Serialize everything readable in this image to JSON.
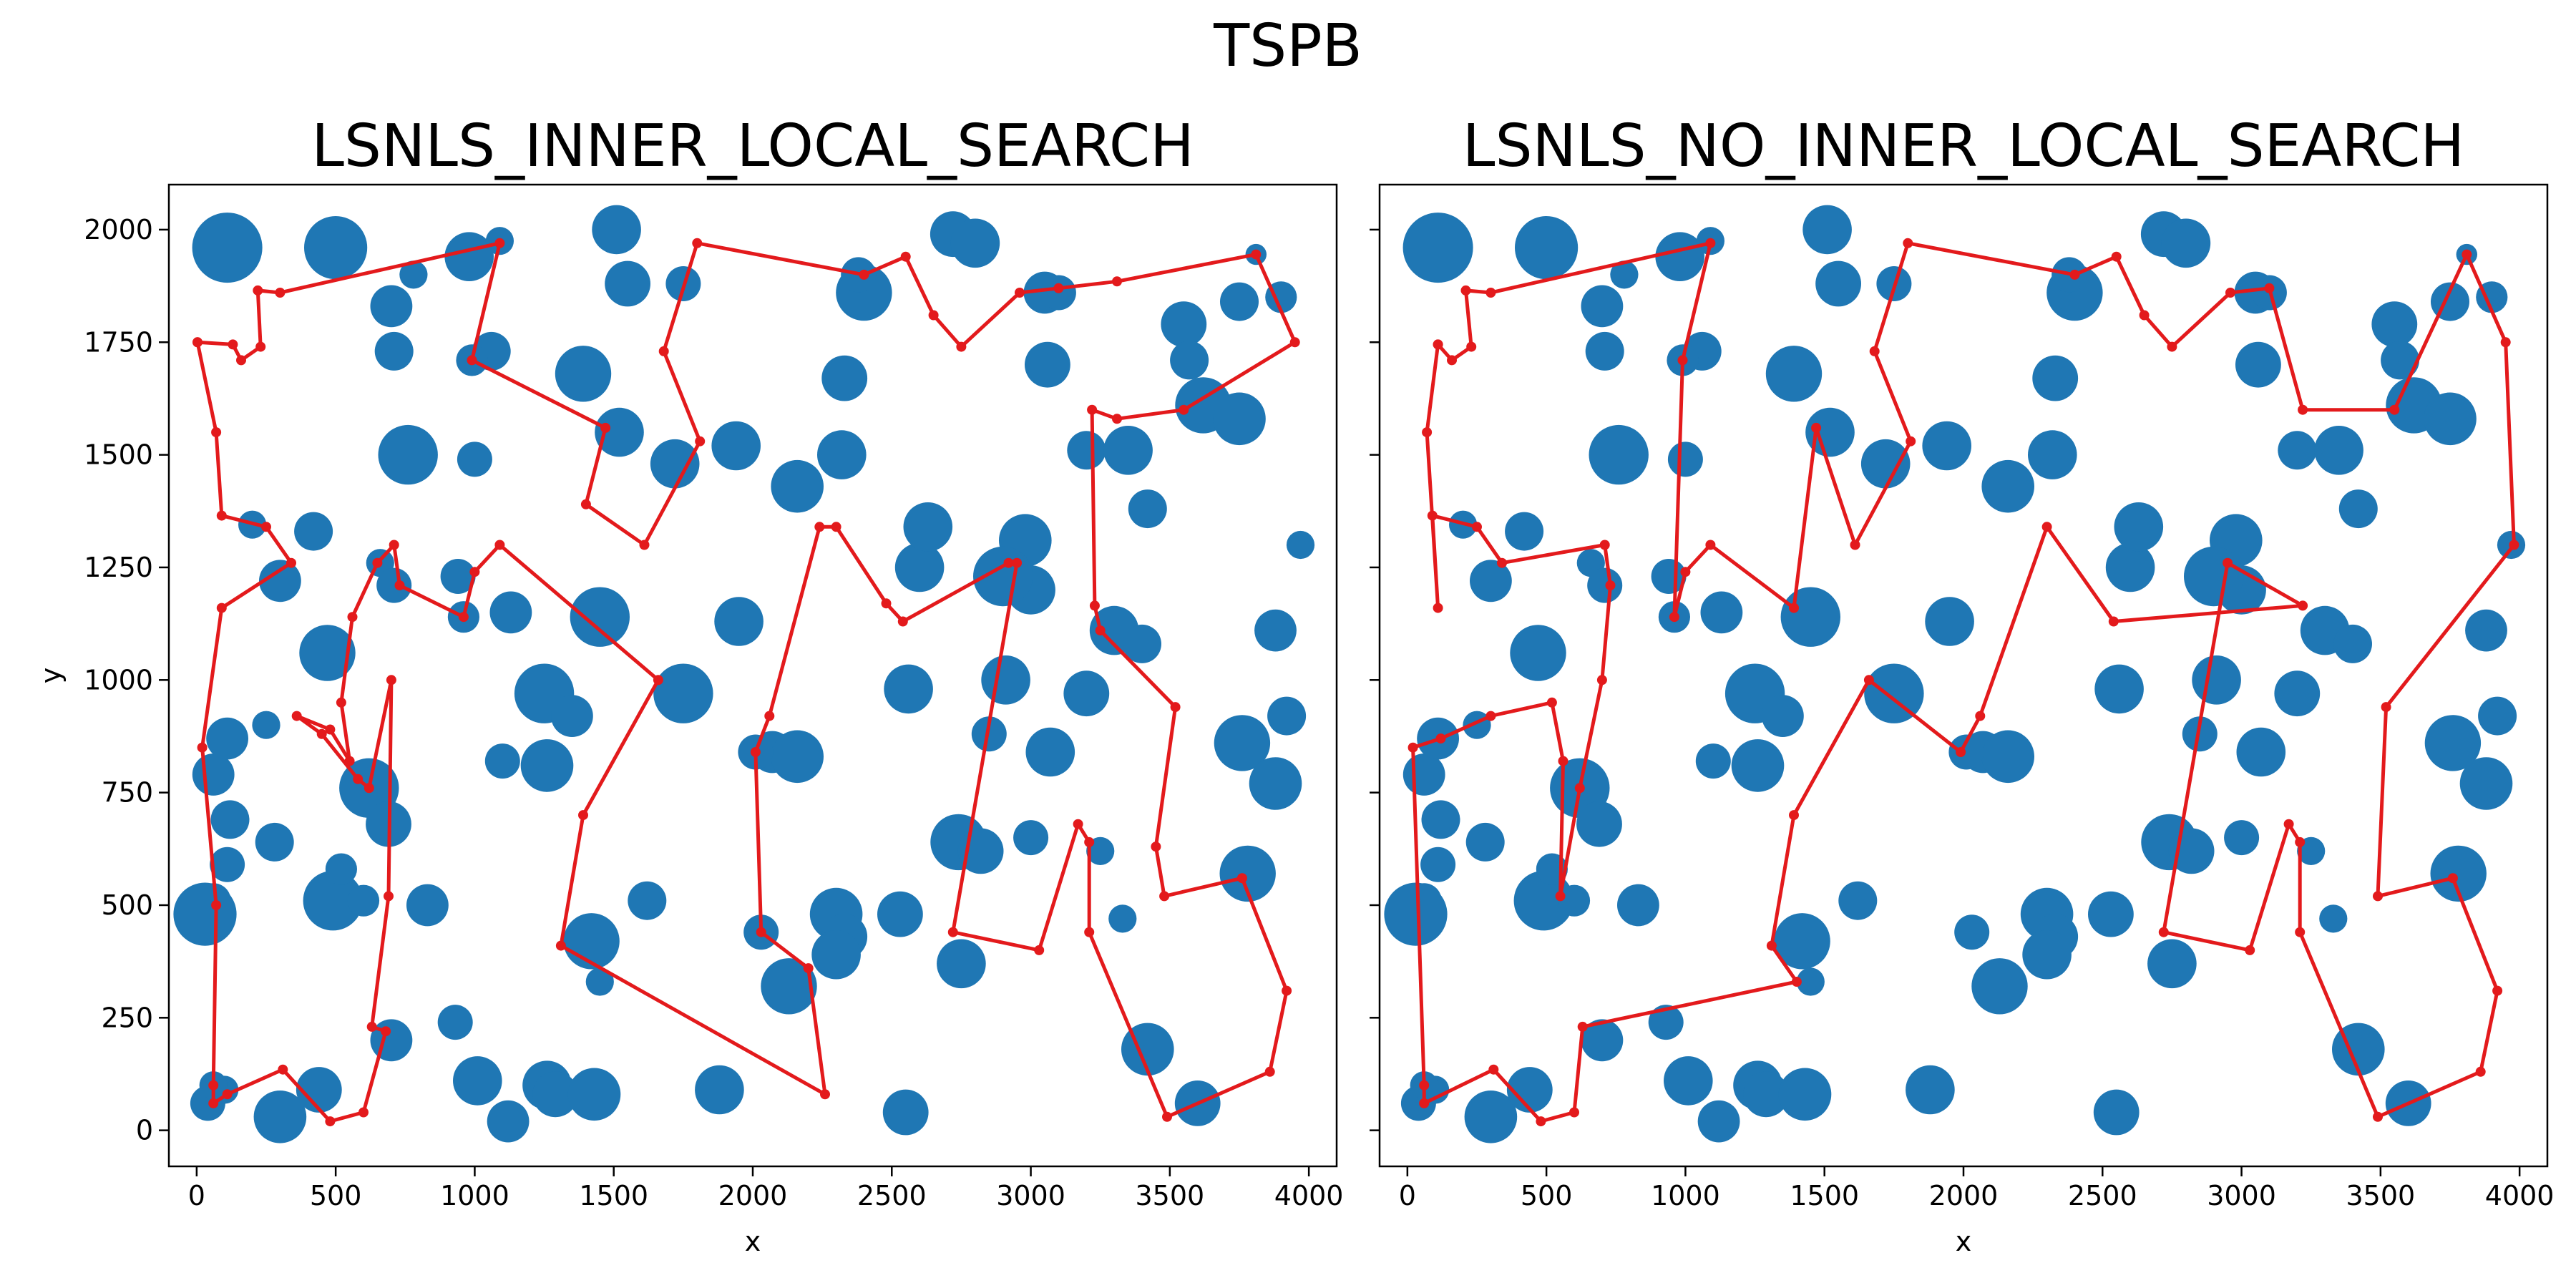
{
  "figure": {
    "title": "TSPB"
  },
  "colors": {
    "node": "#1f77b4",
    "route": "#e31a1c",
    "axis": "#000000"
  },
  "chart_data": [
    {
      "type": "scatter",
      "title": "LSNLS_INNER_LOCAL_SEARCH",
      "xlabel": "x",
      "ylabel": "y",
      "xlim": [
        -100,
        4100
      ],
      "ylim": [
        -80,
        2100
      ],
      "xticks": [
        0,
        500,
        1000,
        1500,
        2000,
        2500,
        3000,
        3500,
        4000
      ],
      "yticks": [
        0,
        250,
        500,
        750,
        1000,
        1250,
        1500,
        1750,
        2000
      ],
      "tick_labels_y_visible": true,
      "grid": false,
      "legend": "none",
      "nodes": "shared",
      "route": [
        [
          3,
          1750
        ],
        [
          130,
          1745
        ],
        [
          160,
          1710
        ],
        [
          230,
          1740
        ],
        [
          220,
          1865
        ],
        [
          300,
          1860
        ],
        [
          1090,
          1970
        ],
        [
          990,
          1710
        ],
        [
          1470,
          1560
        ],
        [
          1400,
          1390
        ],
        [
          1610,
          1300
        ],
        [
          1810,
          1530
        ],
        [
          1680,
          1730
        ],
        [
          1800,
          1970
        ],
        [
          2400,
          1900
        ],
        [
          2550,
          1940
        ],
        [
          2650,
          1810
        ],
        [
          2750,
          1740
        ],
        [
          2960,
          1860
        ],
        [
          3100,
          1870
        ],
        [
          3310,
          1885
        ],
        [
          3810,
          1945
        ],
        [
          3950,
          1750
        ],
        [
          3550,
          1600
        ],
        [
          3310,
          1580
        ],
        [
          3220,
          1600
        ],
        [
          3230,
          1165
        ],
        [
          3250,
          1110
        ],
        [
          3520,
          940
        ],
        [
          3450,
          630
        ],
        [
          3480,
          520
        ],
        [
          3760,
          560
        ],
        [
          3920,
          310
        ],
        [
          3860,
          130
        ],
        [
          3490,
          30
        ],
        [
          3210,
          440
        ],
        [
          3210,
          640
        ],
        [
          3170,
          680
        ],
        [
          3030,
          400
        ],
        [
          2720,
          440
        ],
        [
          2950,
          1260
        ],
        [
          2920,
          1260
        ],
        [
          2540,
          1130
        ],
        [
          2480,
          1170
        ],
        [
          2300,
          1340
        ],
        [
          2240,
          1340
        ],
        [
          2060,
          920
        ],
        [
          2010,
          840
        ],
        [
          2030,
          440
        ],
        [
          2200,
          360
        ],
        [
          2260,
          80
        ],
        [
          1310,
          410
        ],
        [
          1390,
          700
        ],
        [
          1660,
          1000
        ],
        [
          1090,
          1300
        ],
        [
          1000,
          1240
        ],
        [
          960,
          1140
        ],
        [
          730,
          1210
        ],
        [
          710,
          1300
        ],
        [
          650,
          1260
        ],
        [
          560,
          1140
        ],
        [
          520,
          950
        ],
        [
          550,
          820
        ],
        [
          480,
          890
        ],
        [
          360,
          920
        ],
        [
          450,
          880
        ],
        [
          580,
          780
        ],
        [
          620,
          760
        ],
        [
          700,
          1000
        ],
        [
          690,
          520
        ],
        [
          630,
          230
        ],
        [
          680,
          220
        ],
        [
          600,
          40
        ],
        [
          480,
          20
        ],
        [
          310,
          135
        ],
        [
          110,
          80
        ],
        [
          60,
          60
        ],
        [
          60,
          100
        ],
        [
          70,
          500
        ],
        [
          20,
          850
        ],
        [
          90,
          1160
        ],
        [
          340,
          1260
        ],
        [
          250,
          1340
        ],
        [
          90,
          1365
        ],
        [
          70,
          1550
        ],
        [
          3,
          1750
        ]
      ]
    },
    {
      "type": "scatter",
      "title": "LSNLS_NO_INNER_LOCAL_SEARCH",
      "xlabel": "x",
      "ylabel": "",
      "xlim": [
        -100,
        4100
      ],
      "ylim": [
        -80,
        2100
      ],
      "xticks": [
        0,
        500,
        1000,
        1500,
        2000,
        2500,
        3000,
        3500,
        4000
      ],
      "yticks": [
        0,
        250,
        500,
        750,
        1000,
        1250,
        1500,
        1750,
        2000
      ],
      "tick_labels_y_visible": false,
      "grid": false,
      "legend": "none",
      "nodes": "shared",
      "route": [
        [
          110,
          1745
        ],
        [
          160,
          1710
        ],
        [
          230,
          1740
        ],
        [
          210,
          1865
        ],
        [
          300,
          1860
        ],
        [
          1090,
          1970
        ],
        [
          990,
          1710
        ],
        [
          960,
          1140
        ],
        [
          1000,
          1240
        ],
        [
          1090,
          1300
        ],
        [
          1390,
          1160
        ],
        [
          1470,
          1560
        ],
        [
          1610,
          1300
        ],
        [
          1810,
          1530
        ],
        [
          1680,
          1730
        ],
        [
          1800,
          1970
        ],
        [
          2400,
          1900
        ],
        [
          2550,
          1940
        ],
        [
          2650,
          1810
        ],
        [
          2750,
          1740
        ],
        [
          2960,
          1860
        ],
        [
          3100,
          1870
        ],
        [
          3220,
          1600
        ],
        [
          3550,
          1600
        ],
        [
          3810,
          1945
        ],
        [
          3950,
          1750
        ],
        [
          3980,
          1300
        ],
        [
          3520,
          940
        ],
        [
          3490,
          520
        ],
        [
          3760,
          560
        ],
        [
          3920,
          310
        ],
        [
          3860,
          130
        ],
        [
          3490,
          30
        ],
        [
          3210,
          440
        ],
        [
          3210,
          640
        ],
        [
          3170,
          680
        ],
        [
          3030,
          400
        ],
        [
          2720,
          440
        ],
        [
          2950,
          1260
        ],
        [
          3220,
          1165
        ],
        [
          2540,
          1130
        ],
        [
          2300,
          1340
        ],
        [
          2060,
          920
        ],
        [
          1990,
          840
        ],
        [
          1660,
          1000
        ],
        [
          1390,
          700
        ],
        [
          1310,
          410
        ],
        [
          1400,
          330
        ],
        [
          630,
          230
        ],
        [
          600,
          40
        ],
        [
          480,
          20
        ],
        [
          310,
          135
        ],
        [
          60,
          60
        ],
        [
          60,
          100
        ],
        [
          20,
          850
        ],
        [
          120,
          870
        ],
        [
          300,
          920
        ],
        [
          520,
          950
        ],
        [
          560,
          820
        ],
        [
          550,
          520
        ],
        [
          620,
          760
        ],
        [
          700,
          1000
        ],
        [
          730,
          1210
        ],
        [
          710,
          1300
        ],
        [
          340,
          1260
        ],
        [
          250,
          1340
        ],
        [
          90,
          1365
        ],
        [
          110,
          1160
        ],
        [
          70,
          1550
        ],
        [
          110,
          1745
        ]
      ]
    }
  ],
  "nodes": [
    [
      110,
      1960,
      20
    ],
    [
      500,
      1960,
      18
    ],
    [
      700,
      1830,
      12
    ],
    [
      710,
      1730,
      11
    ],
    [
      780,
      1900,
      8
    ],
    [
      980,
      1940,
      14
    ],
    [
      1090,
      1975,
      8
    ],
    [
      1060,
      1730,
      11
    ],
    [
      990,
      1710,
      9
    ],
    [
      1390,
      1680,
      16
    ],
    [
      1550,
      1880,
      13
    ],
    [
      1510,
      2000,
      14
    ],
    [
      1750,
      1880,
      10
    ],
    [
      2400,
      1860,
      16
    ],
    [
      2380,
      1900,
      10
    ],
    [
      2720,
      1990,
      13
    ],
    [
      2800,
      1970,
      14
    ],
    [
      3050,
      1860,
      12
    ],
    [
      3100,
      1860,
      10
    ],
    [
      3060,
      1700,
      13
    ],
    [
      3550,
      1790,
      13
    ],
    [
      3570,
      1710,
      11
    ],
    [
      3750,
      1840,
      11
    ],
    [
      3900,
      1850,
      9
    ],
    [
      3810,
      1945,
      6
    ],
    [
      760,
      1500,
      17
    ],
    [
      1000,
      1490,
      10
    ],
    [
      1520,
      1550,
      14
    ],
    [
      1720,
      1480,
      14
    ],
    [
      1940,
      1520,
      14
    ],
    [
      2160,
      1430,
      15
    ],
    [
      2330,
      1670,
      13
    ],
    [
      2320,
      1500,
      14
    ],
    [
      3200,
      1510,
      11
    ],
    [
      3350,
      1510,
      14
    ],
    [
      3420,
      1380,
      11
    ],
    [
      3620,
      1610,
      16
    ],
    [
      3750,
      1580,
      15
    ],
    [
      3970,
      1300,
      8
    ],
    [
      420,
      1330,
      11
    ],
    [
      200,
      1345,
      8
    ],
    [
      300,
      1220,
      12
    ],
    [
      660,
      1260,
      8
    ],
    [
      710,
      1210,
      10
    ],
    [
      940,
      1230,
      10
    ],
    [
      960,
      1140,
      9
    ],
    [
      1130,
      1150,
      12
    ],
    [
      1450,
      1140,
      17
    ],
    [
      1950,
      1130,
      14
    ],
    [
      2600,
      1250,
      14
    ],
    [
      2630,
      1340,
      14
    ],
    [
      2980,
      1310,
      15
    ],
    [
      3000,
      1200,
      14
    ],
    [
      2900,
      1230,
      17
    ],
    [
      3300,
      1110,
      14
    ],
    [
      3400,
      1080,
      11
    ],
    [
      3200,
      970,
      13
    ],
    [
      3760,
      860,
      16
    ],
    [
      3880,
      1110,
      12
    ],
    [
      470,
      1060,
      16
    ],
    [
      250,
      900,
      8
    ],
    [
      1250,
      970,
      17
    ],
    [
      1350,
      920,
      12
    ],
    [
      1750,
      970,
      17
    ],
    [
      2070,
      840,
      12
    ],
    [
      2160,
      830,
      15
    ],
    [
      2010,
      840,
      10
    ],
    [
      2560,
      980,
      14
    ],
    [
      2850,
      880,
      10
    ],
    [
      2910,
      1000,
      14
    ],
    [
      3070,
      840,
      14
    ],
    [
      3880,
      770,
      15
    ],
    [
      3920,
      920,
      11
    ],
    [
      1100,
      820,
      10
    ],
    [
      1260,
      810,
      15
    ],
    [
      620,
      760,
      17
    ],
    [
      690,
      680,
      13
    ],
    [
      280,
      640,
      11
    ],
    [
      110,
      590,
      10
    ],
    [
      490,
      510,
      17
    ],
    [
      520,
      580,
      9
    ],
    [
      600,
      510,
      9
    ],
    [
      830,
      500,
      12
    ],
    [
      1620,
      510,
      11
    ],
    [
      2030,
      440,
      10
    ],
    [
      2300,
      480,
      15
    ],
    [
      2330,
      430,
      13
    ],
    [
      2300,
      390,
      14
    ],
    [
      2130,
      320,
      16
    ],
    [
      2530,
      480,
      13
    ],
    [
      2740,
      640,
      16
    ],
    [
      2820,
      620,
      13
    ],
    [
      3000,
      650,
      10
    ],
    [
      2750,
      370,
      14
    ],
    [
      3330,
      470,
      8
    ],
    [
      3250,
      620,
      8
    ],
    [
      3780,
      570,
      16
    ],
    [
      3420,
      180,
      15
    ],
    [
      3600,
      60,
      13
    ],
    [
      1420,
      420,
      16
    ],
    [
      1450,
      330,
      8
    ],
    [
      700,
      200,
      12
    ],
    [
      930,
      240,
      10
    ],
    [
      1010,
      110,
      14
    ],
    [
      1120,
      20,
      12
    ],
    [
      1260,
      100,
      14
    ],
    [
      1290,
      80,
      13
    ],
    [
      1430,
      80,
      15
    ],
    [
      1880,
      90,
      14
    ],
    [
      2550,
      40,
      13
    ],
    [
      300,
      30,
      15
    ],
    [
      440,
      90,
      13
    ],
    [
      60,
      510,
      10
    ],
    [
      30,
      480,
      18
    ],
    [
      60,
      790,
      12
    ],
    [
      110,
      870,
      12
    ],
    [
      120,
      690,
      11
    ],
    [
      40,
      60,
      10
    ],
    [
      100,
      90,
      8
    ],
    [
      60,
      100,
      8
    ]
  ]
}
